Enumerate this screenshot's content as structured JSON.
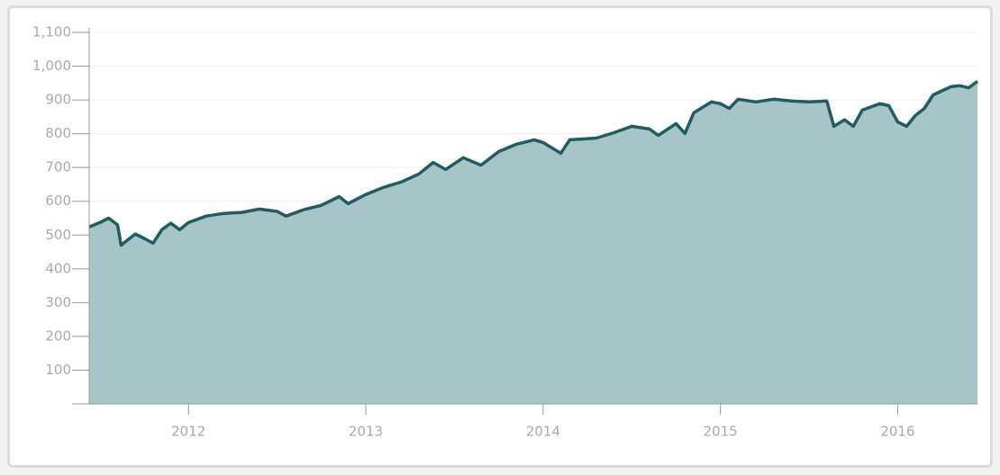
{
  "chart_data": {
    "type": "area",
    "x": [
      2011.44,
      2011.5,
      2011.55,
      2011.6,
      2011.62,
      2011.7,
      2011.75,
      2011.8,
      2011.85,
      2011.9,
      2011.95,
      2012.0,
      2012.1,
      2012.2,
      2012.3,
      2012.4,
      2012.5,
      2012.55,
      2012.65,
      2012.75,
      2012.85,
      2012.9,
      2013.0,
      2013.1,
      2013.2,
      2013.3,
      2013.38,
      2013.45,
      2013.55,
      2013.65,
      2013.75,
      2013.85,
      2013.95,
      2014.0,
      2014.1,
      2014.15,
      2014.3,
      2014.4,
      2014.5,
      2014.6,
      2014.65,
      2014.75,
      2014.8,
      2014.85,
      2014.95,
      2015.0,
      2015.05,
      2015.1,
      2015.2,
      2015.3,
      2015.4,
      2015.5,
      2015.6,
      2015.64,
      2015.7,
      2015.75,
      2015.8,
      2015.9,
      2015.95,
      2016.0,
      2016.05,
      2016.1,
      2016.15,
      2016.2,
      2016.3,
      2016.35,
      2016.4,
      2016.45
    ],
    "values": [
      524,
      537,
      550,
      530,
      470,
      503,
      490,
      476,
      516,
      535,
      516,
      537,
      556,
      564,
      567,
      577,
      570,
      556,
      575,
      588,
      614,
      593,
      620,
      641,
      657,
      681,
      715,
      694,
      729,
      707,
      747,
      769,
      782,
      774,
      742,
      782,
      787,
      803,
      822,
      814,
      795,
      830,
      801,
      862,
      894,
      889,
      875,
      902,
      894,
      902,
      897,
      894,
      897,
      822,
      841,
      822,
      870,
      889,
      883,
      835,
      822,
      854,
      875,
      915,
      939,
      942,
      936,
      955
    ],
    "color": "#a7c4c6",
    "line_color": "#1f5d64",
    "xlim": [
      2011.44,
      2016.45
    ],
    "xticks": [
      2012,
      2013,
      2014,
      2015,
      2016
    ],
    "ylim": [
      0,
      1100
    ],
    "yticks": [
      100,
      200,
      300,
      400,
      500,
      600,
      700,
      800,
      900,
      {
        "value": 1000,
        "label": "1,000"
      },
      {
        "value": 1100,
        "label": "1,100"
      }
    ],
    "grid": true
  }
}
